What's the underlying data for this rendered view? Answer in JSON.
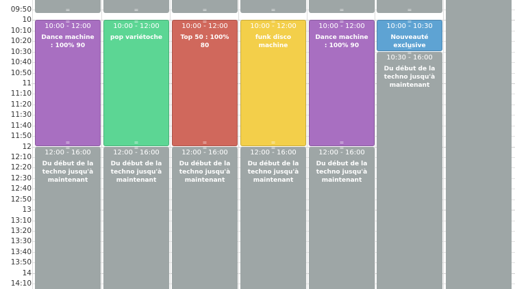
{
  "colors": {
    "purple": "#a86fc1",
    "green": "#5cd694",
    "red": "#d0685c",
    "yellow": "#f3cf4a",
    "blue": "#5ea3d3",
    "gray": "#9ea6a6"
  },
  "time_labels": [
    "09:50",
    "10",
    "10:10",
    "10:20",
    "10:30",
    "10:40",
    "10:50",
    "11",
    "11:10",
    "11:20",
    "11:30",
    "11:40",
    "11:50",
    "12",
    "12:10",
    "12:20",
    "12:30",
    "12:40",
    "12:50",
    "13",
    "13:10",
    "13:20",
    "13:30",
    "13:40",
    "13:50",
    "14",
    "14:10"
  ],
  "days": [
    {
      "events": [
        {
          "time": "10:00 - 12:00",
          "title": "Dance machine : 100% 90",
          "color": "purple"
        },
        {
          "time": "12:00 - 16:00",
          "title": "Du début de la techno jusqu'à maintenant",
          "color": "gray"
        }
      ]
    },
    {
      "events": [
        {
          "time": "10:00 - 12:00",
          "title": "pop variétoche",
          "color": "green"
        },
        {
          "time": "12:00 - 16:00",
          "title": "Du début de la techno jusqu'à maintenant",
          "color": "gray"
        }
      ]
    },
    {
      "events": [
        {
          "time": "10:00 - 12:00",
          "title": "Top 50 : 100% 80",
          "color": "red"
        },
        {
          "time": "12:00 - 16:00",
          "title": "Du début de la techno jusqu'à maintenant",
          "color": "gray"
        }
      ]
    },
    {
      "events": [
        {
          "time": "10:00 - 12:00",
          "title": "funk disco machine",
          "color": "yellow"
        },
        {
          "time": "12:00 - 16:00",
          "title": "Du début de la techno jusqu'à maintenant",
          "color": "gray"
        }
      ]
    },
    {
      "events": [
        {
          "time": "10:00 - 12:00",
          "title": "Dance machine : 100% 90",
          "color": "purple"
        },
        {
          "time": "12:00 - 16:00",
          "title": "Du début de la techno jusqu'à maintenant",
          "color": "gray"
        }
      ]
    },
    {
      "events": [
        {
          "time": "10:00 - 10:30",
          "title": "Nouveauté exclusive Mystyx radio",
          "color": "blue"
        },
        {
          "time": "10:30 - 16:00",
          "title": "Du début de la techno jusqu'à maintenant",
          "color": "gray"
        }
      ]
    },
    {
      "events": []
    }
  ]
}
